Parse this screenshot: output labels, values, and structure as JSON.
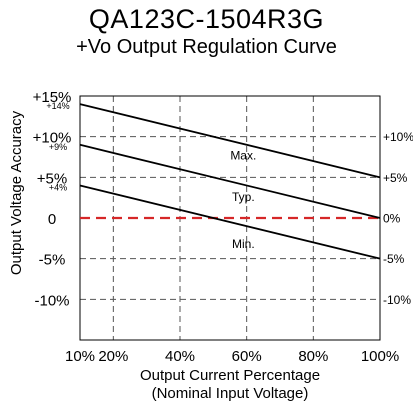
{
  "title": "QA123C-1504R3G",
  "subtitle": "+Vo Output Regulation Curve",
  "colors": {
    "zero_line": "#d62728",
    "curve": "#000000",
    "grid": "#555555"
  },
  "chart_data": {
    "type": "line",
    "title": "QA123C-1504R3G",
    "subtitle": "+Vo Output Regulation Curve",
    "xlabel": [
      "Output Current Percentage",
      "(Nominal Input Voltage)"
    ],
    "ylabel": "Output Voltage Accuracy",
    "xlim": [
      10,
      100
    ],
    "ylim": [
      -15,
      15
    ],
    "x_ticks": [
      {
        "value": 10,
        "label": "10%"
      },
      {
        "value": 20,
        "label": "20%"
      },
      {
        "value": 40,
        "label": "40%"
      },
      {
        "value": 60,
        "label": "60%"
      },
      {
        "value": 80,
        "label": "80%"
      },
      {
        "value": 100,
        "label": "100%"
      }
    ],
    "y_ticks_left": [
      {
        "value": 15,
        "label": "+15%"
      },
      {
        "value": 10,
        "label": "+10%"
      },
      {
        "value": 5,
        "label": "+5%"
      },
      {
        "value": 0,
        "label": "0"
      },
      {
        "value": -5,
        "label": "-5%"
      },
      {
        "value": -10,
        "label": "-10%"
      }
    ],
    "y_ticks_left_minor": [
      {
        "value": 14,
        "label": "+14%"
      },
      {
        "value": 9,
        "label": "+9%"
      },
      {
        "value": 4,
        "label": "+4%"
      }
    ],
    "y_ticks_right": [
      {
        "value": 10,
        "label": "+10%"
      },
      {
        "value": 5,
        "label": "+5%"
      },
      {
        "value": 0,
        "label": "0%"
      },
      {
        "value": -5,
        "label": "-5%"
      },
      {
        "value": -10,
        "label": "-10%"
      }
    ],
    "grid_x": [
      20,
      40,
      60,
      80
    ],
    "grid_y": [
      -10,
      -5,
      5,
      10
    ],
    "reference_line": {
      "y": 0,
      "style": "dashed"
    },
    "series": [
      {
        "name": "Max.",
        "x": [
          10,
          100
        ],
        "y": [
          14,
          5
        ],
        "label_at": [
          59,
          7.7
        ]
      },
      {
        "name": "Typ.",
        "x": [
          10,
          100
        ],
        "y": [
          9,
          0
        ],
        "label_at": [
          59,
          2.6
        ]
      },
      {
        "name": "Min.",
        "x": [
          10,
          100
        ],
        "y": [
          4,
          -5
        ],
        "label_at": [
          59,
          -3.2
        ]
      }
    ]
  }
}
